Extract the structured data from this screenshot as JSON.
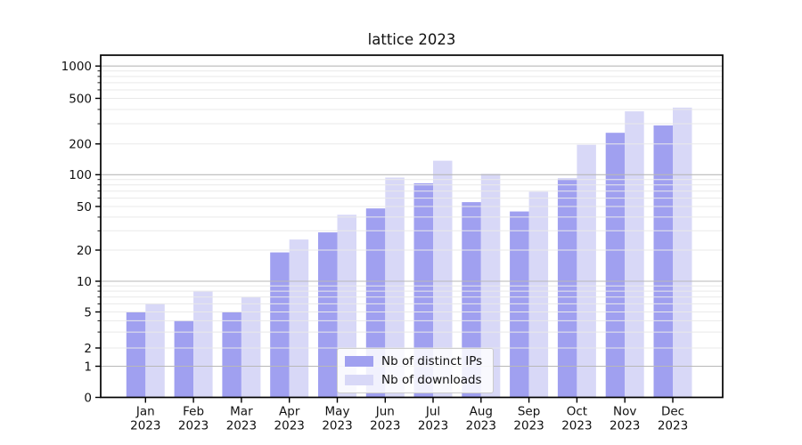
{
  "chart_data": {
    "type": "bar",
    "title": "lattice 2023",
    "categories": [
      "Jan",
      "Feb",
      "Mar",
      "Apr",
      "May",
      "Jun",
      "Jul",
      "Aug",
      "Sep",
      "Oct",
      "Nov",
      "Dec"
    ],
    "year_label": "2023",
    "series": [
      {
        "name": "Nb of distinct IPs",
        "color": "#a0a0f0",
        "values": [
          5,
          4,
          5,
          19,
          29,
          48,
          83,
          55,
          45,
          92,
          250,
          290
        ]
      },
      {
        "name": "Nb of downloads",
        "color": "#d8d8f7",
        "values": [
          6,
          8,
          7,
          25,
          42,
          94,
          137,
          102,
          69,
          196,
          385,
          415
        ]
      }
    ],
    "yscale": "symlog",
    "y_tick_labels": [
      0,
      1,
      2,
      5,
      10,
      20,
      50,
      100,
      200,
      500,
      1000
    ],
    "ylim": [
      0,
      1150
    ],
    "grid": "both",
    "legend": {
      "position": "lower center",
      "entries": [
        "Nb of distinct IPs",
        "Nb of downloads"
      ]
    }
  }
}
